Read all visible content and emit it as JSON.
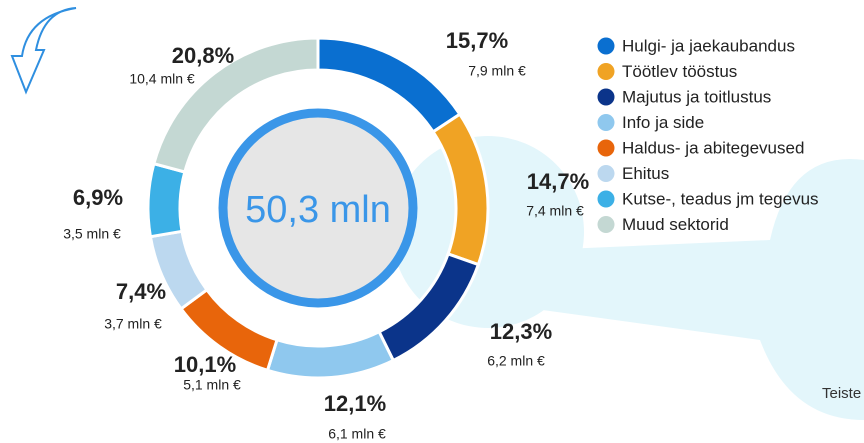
{
  "chart_data": {
    "type": "donut",
    "center_label": "50,3 mln",
    "categories": [
      "Hulgi- ja jaekaubandus",
      "Töötlev tööstus",
      "Majutus ja toitlustus",
      "Info ja side",
      "Haldus- ja abitegevused",
      "Ehitus",
      "Kutse-, teadus jm tegevus",
      "Muud sektorid"
    ],
    "values": [
      15.7,
      14.7,
      12.3,
      12.1,
      10.1,
      7.4,
      6.9,
      20.8
    ],
    "value_labels": [
      "15,7%",
      "14,7%",
      "12,3%",
      "12,1%",
      "10,1%",
      "7,4%",
      "6,9%",
      "20,8%"
    ],
    "amounts": [
      7.9,
      7.4,
      6.2,
      6.1,
      5.1,
      3.7,
      3.5,
      10.4
    ],
    "amount_labels": [
      "7,9 mln €",
      "7,4 mln €",
      "6,2 mln €",
      "6,1 mln €",
      "5,1 mln €",
      "3,7 mln €",
      "3,5 mln €",
      "10,4 mln €"
    ],
    "colors": [
      "#0a6fd0",
      "#f0a324",
      "#0b348a",
      "#8fc8ee",
      "#e8650b",
      "#bcd8ef",
      "#3cb0e6",
      "#c4d8d3"
    ],
    "annotation": "Teiste"
  }
}
